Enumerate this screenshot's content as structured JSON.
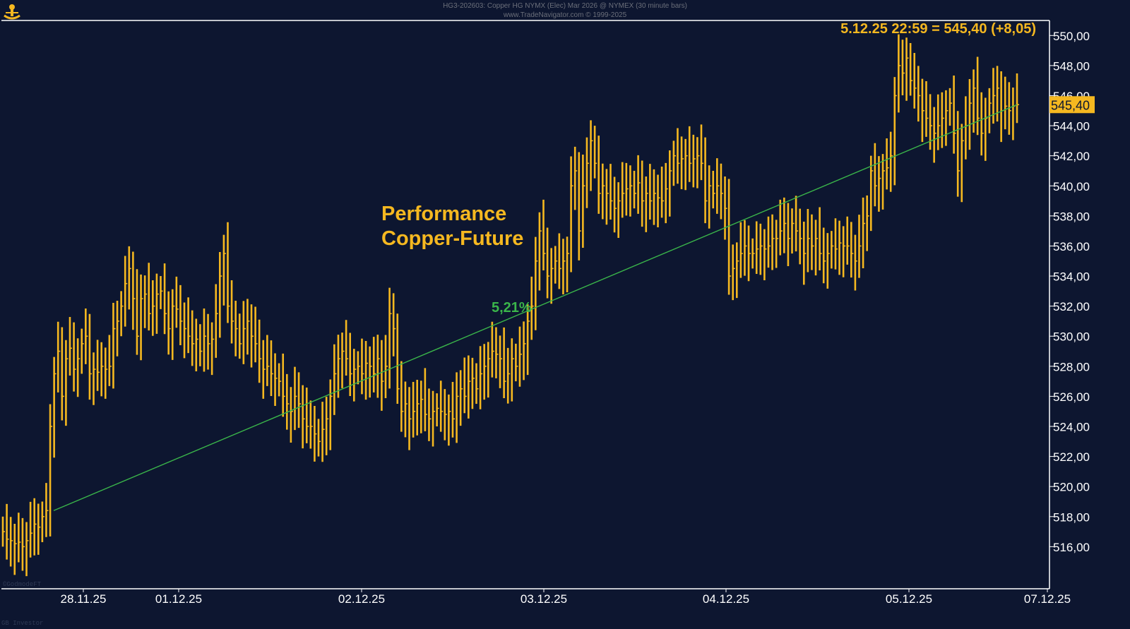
{
  "header": {
    "title": "HG3-202603: Copper HG NYMX (Elec) Mar 2026 @ NYMEX (30 minute bars)",
    "subtitle": "www.TradeNavigator.com © 1999-2025"
  },
  "watermarks": {
    "bottom_left_1": "©GodmodeFT",
    "bottom_left_2": "GB Investor"
  },
  "colors": {
    "background": "#0d1630",
    "price": "#f5b820",
    "trend": "#3ab54a",
    "axis": "#ffffff",
    "highlight_bg": "#f5b820"
  },
  "icon": "trade-navigator-logo-icon",
  "chart_data": {
    "type": "bar",
    "title": "Performance",
    "subtitle": "Copper-Future",
    "info_label": "5.12.25 22:59 = 545,40 (+8,05)",
    "last_price_label": "545,40",
    "trend_label": "5,21%",
    "y_ticks": [
      "516,00",
      "518,00",
      "520,00",
      "522,00",
      "524,00",
      "526,00",
      "528,00",
      "530,00",
      "532,00",
      "534,00",
      "536,00",
      "538,00",
      "540,00",
      "542,00",
      "544,00",
      "546,00",
      "548,00",
      "550,00"
    ],
    "x_ticks": [
      "28.11.25",
      "01.12.25",
      "02.12.25",
      "03.12.25",
      "04.12.25",
      "05.12.25",
      "07.12.25"
    ],
    "ylim": [
      513.2,
      551.0
    ],
    "grid": false,
    "trend_line": {
      "from": 518.4,
      "to": 545.4
    },
    "closes": [
      517.0,
      516.5,
      516.4,
      516.2,
      516.3,
      516.0,
      516.4,
      516.9,
      517.5,
      517.3,
      518.0,
      518.4,
      524.0,
      527.5,
      529.0,
      526.0,
      528.5,
      529.2,
      527.8,
      528.5,
      529.5,
      530.0,
      527.5,
      527.8,
      527.6,
      528.0,
      527.8,
      528.0,
      530.5,
      531.0,
      532.0,
      533.5,
      534.5,
      532.5,
      530.0,
      532.5,
      532.8,
      531.5,
      532.0,
      532.8,
      533.0,
      531.5,
      530.5,
      532.0,
      531.8,
      531.0,
      530.5,
      530.0,
      529.5,
      529.8,
      529.0,
      530.0,
      529.5,
      529.8,
      531.5,
      534.0,
      535.5,
      532.0,
      531.0,
      530.5,
      529.5,
      530.5,
      531.0,
      530.0,
      529.5,
      528.5,
      527.8,
      528.0,
      527.5,
      527.2,
      527.0,
      526.0,
      525.5,
      525.0,
      526.0,
      525.5,
      524.5,
      524.0,
      524.0,
      523.5,
      523.0,
      523.8,
      524.5,
      526.0,
      527.5,
      528.5,
      529.0,
      528.5,
      527.5,
      527.8,
      528.0,
      527.5,
      528.2,
      528.0,
      527.5,
      528.5,
      527.0,
      528.0,
      531.5,
      530.5,
      526.5,
      525.0,
      525.5,
      524.5,
      525.0,
      525.5,
      525.8,
      524.8,
      524.5,
      525.0,
      525.2,
      525.0,
      524.8,
      525.0,
      524.5,
      526.0,
      526.5,
      526.0,
      527.0,
      527.2,
      526.5,
      527.5,
      528.0,
      528.5,
      529.0,
      528.8,
      528.5,
      527.0,
      527.5,
      528.5,
      528.0,
      528.8,
      529.5,
      531.0,
      532.0,
      535.0,
      537.0,
      535.5,
      534.0,
      534.5,
      535.0,
      534.5,
      535.0,
      535.5,
      540.0,
      541.0,
      537.0,
      540.0,
      541.5,
      543.0,
      541.5,
      539.5,
      540.0,
      539.5,
      539.0,
      538.5,
      539.0,
      539.5,
      539.8,
      540.0,
      539.5,
      540.2,
      539.0,
      539.5,
      539.0,
      539.5,
      539.2,
      539.0,
      539.8,
      541.0,
      542.0,
      541.5,
      541.8,
      542.0,
      541.5,
      541.8,
      542.0,
      541.5,
      539.0,
      540.0,
      539.5,
      540.0,
      539.5,
      538.5,
      534.0,
      534.5,
      535.0,
      535.5,
      536.0,
      535.5,
      535.5,
      535.8,
      536.0,
      535.8,
      536.0,
      536.5,
      536.5,
      537.0,
      537.5,
      536.5,
      537.5,
      537.0,
      536.5,
      535.5,
      536.5,
      536.0,
      536.5,
      535.5,
      535.0,
      535.5,
      536.0,
      535.8,
      536.2,
      536.0,
      536.0,
      535.5,
      535.0,
      536.0,
      537.5,
      538.0,
      541.0,
      540.0,
      540.5,
      541.0,
      541.2,
      542.0,
      546.0,
      548.0,
      547.5,
      548.5,
      547.0,
      546.5,
      546.0,
      545.0,
      544.5,
      544.0,
      543.5,
      544.0,
      544.5,
      545.0,
      545.5,
      543.5,
      541.0,
      543.0,
      544.0,
      545.5,
      546.5,
      544.5,
      543.5,
      544.5,
      545.5,
      546.0,
      546.5,
      545.0,
      545.3,
      545.0,
      545.3,
      545.4
    ]
  }
}
